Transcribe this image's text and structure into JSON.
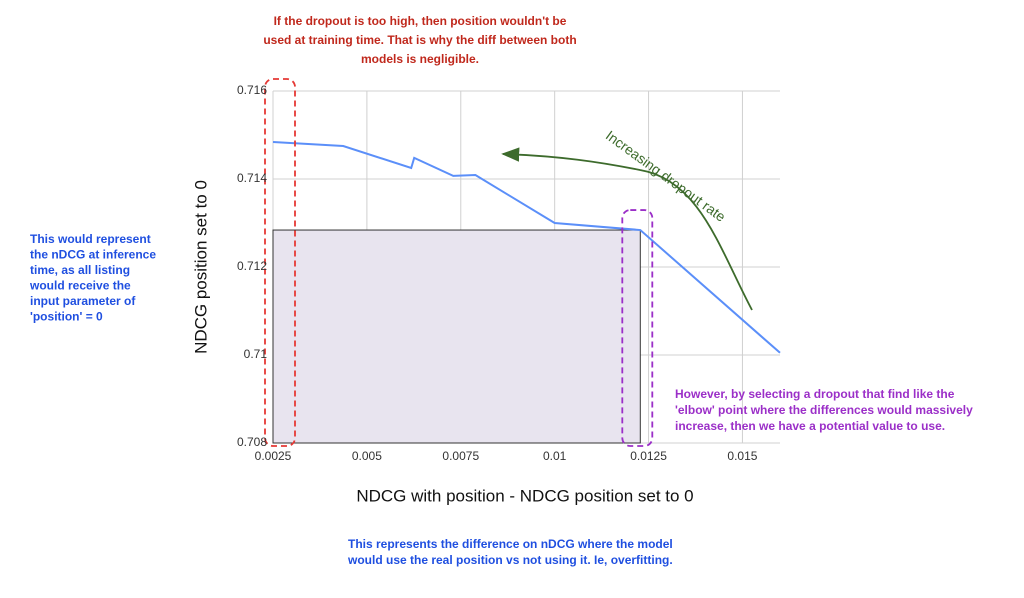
{
  "chart_data": {
    "type": "line",
    "x_label": "NDCG with position - NDCG position set to 0",
    "y_label": "NDCG position set to 0",
    "x": [
      0.0025,
      0.00437,
      0.00618,
      0.00626,
      0.0073,
      0.00789,
      0.01,
      0.01228,
      0.016
    ],
    "series": [
      {
        "color": "#5b8ff9",
        "values": [
          0.71484,
          0.71475,
          0.71425,
          0.71448,
          0.71407,
          0.71409,
          0.713,
          0.71284,
          0.71005
        ]
      }
    ],
    "xlim": [
      0.0025,
      0.016
    ],
    "ylim": [
      0.708,
      0.716
    ],
    "xticks": [
      0.0025,
      0.005,
      0.0075,
      0.01,
      0.0125,
      0.015
    ],
    "yticks": [
      0.708,
      0.71,
      0.712,
      0.714,
      0.716
    ],
    "grid": true,
    "annotations": [
      {
        "color": "#c0281c",
        "lines": [
          "If the dropout is too high, then position wouldn't be",
          "used at training time. That is why the diff between both",
          "models is negligible."
        ]
      },
      {
        "color": "#1f4fe0",
        "lines": [
          "This would represent",
          "the nDCG at inference",
          "time, as all listing",
          "would receive the",
          "input parameter of",
          "'position' = 0"
        ]
      },
      {
        "color": "#9b2fc8",
        "lines": [
          "However, by selecting a dropout that find like the",
          "'elbow' point where the differences would massively",
          "increase, then we have a potential value to use."
        ]
      },
      {
        "color": "#1f4fe0",
        "lines": [
          "This represents the difference on nDCG where the model",
          "would use the real position vs not using it. Ie, overfitting."
        ]
      },
      {
        "color": "#3d6b2c",
        "lines": [
          "Increasing dropout rate"
        ]
      }
    ]
  }
}
